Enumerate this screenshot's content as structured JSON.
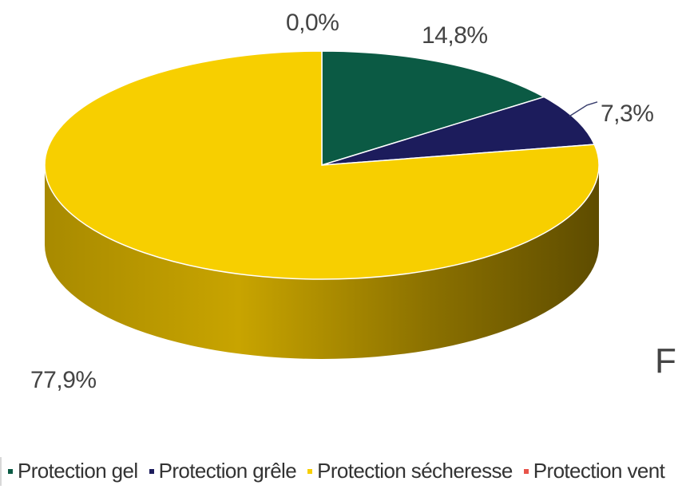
{
  "chart_data": {
    "type": "pie",
    "categories": [
      "Protection gel",
      "Protection grêle",
      "Protection sécheresse",
      "Protection vent"
    ],
    "values": [
      14.8,
      7.3,
      77.9,
      0.0
    ],
    "value_labels": [
      "14,8%",
      "7,3%",
      "77,9%",
      "0,0%"
    ],
    "colors": [
      "#0b5a44",
      "#1c1c5c",
      "#f7cf00",
      "#e8534a"
    ],
    "legend_position": "bottom",
    "style": "3d"
  },
  "fragment_text": "F"
}
